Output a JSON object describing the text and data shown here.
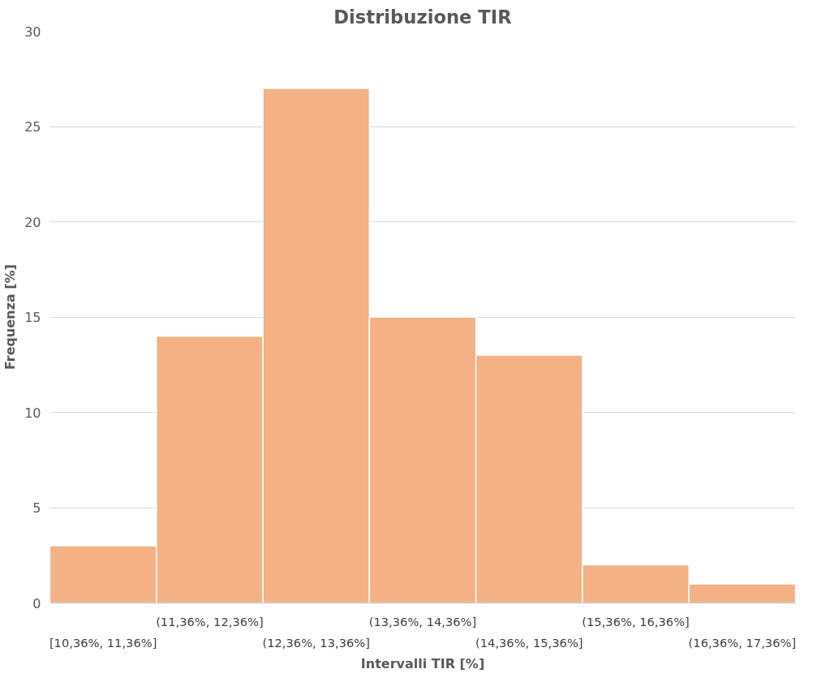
{
  "chart_data": {
    "type": "bar",
    "title": "Distribuzione TIR",
    "xlabel": "Intervalli TIR [%]",
    "ylabel": "Frequenza [%]",
    "categories": [
      "[10,36%, 11,36%]",
      "(11,36%, 12,36%]",
      "(12,36%, 13,36%]",
      "(13,36%, 14,36%]",
      "(14,36%, 15,36%]",
      "(15,36%, 16,36%]",
      "(16,36%, 17,36%]"
    ],
    "values": [
      3,
      14,
      27,
      15,
      13,
      2,
      1
    ],
    "color": "#f4b183",
    "ylim": [
      0,
      30
    ],
    "yticks": [
      0,
      5,
      10,
      15,
      20,
      25,
      30
    ],
    "grid": "y"
  }
}
